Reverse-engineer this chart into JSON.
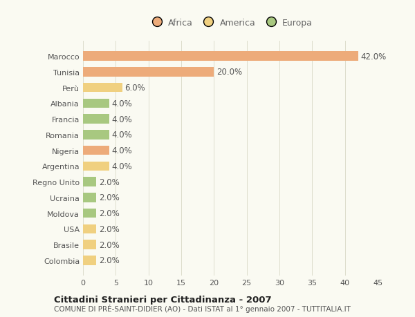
{
  "categories": [
    "Marocco",
    "Tunisia",
    "Perù",
    "Albania",
    "Francia",
    "Romania",
    "Nigeria",
    "Argentina",
    "Regno Unito",
    "Ucraina",
    "Moldova",
    "USA",
    "Brasile",
    "Colombia"
  ],
  "values": [
    42.0,
    20.0,
    6.0,
    4.0,
    4.0,
    4.0,
    4.0,
    4.0,
    2.0,
    2.0,
    2.0,
    2.0,
    2.0,
    2.0
  ],
  "continents": [
    "Africa",
    "Africa",
    "America",
    "Europa",
    "Europa",
    "Europa",
    "Africa",
    "America",
    "Europa",
    "Europa",
    "Europa",
    "America",
    "America",
    "America"
  ],
  "colors": {
    "Africa": "#EDAB7A",
    "America": "#F0D080",
    "Europa": "#A8C880"
  },
  "xlim": [
    0,
    45
  ],
  "xticks": [
    0,
    5,
    10,
    15,
    20,
    25,
    30,
    35,
    40,
    45
  ],
  "title": "Cittadini Stranieri per Cittadinanza - 2007",
  "subtitle": "COMUNE DI PRÉ-SAINT-DIDIER (AO) - Dati ISTAT al 1° gennaio 2007 - TUTTITALIA.IT",
  "background_color": "#FAFAF2",
  "bar_height": 0.6,
  "label_fontsize": 8.5,
  "tick_fontsize": 8,
  "title_fontsize": 9.5,
  "subtitle_fontsize": 7.5,
  "legend_fontsize": 9
}
